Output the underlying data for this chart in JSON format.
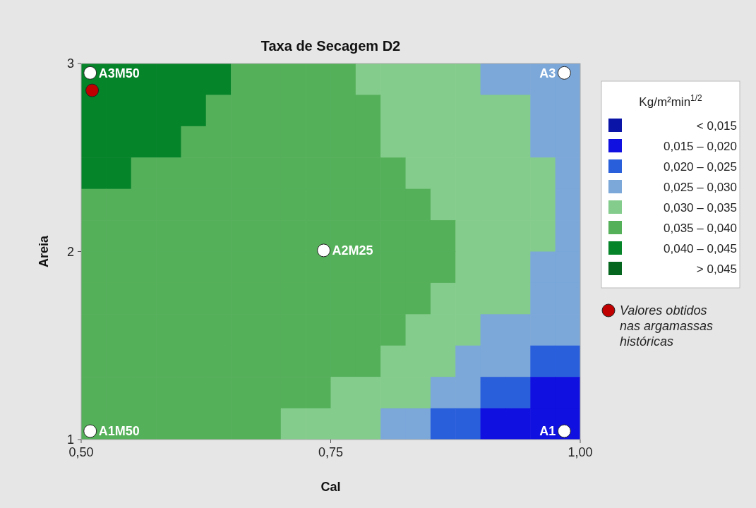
{
  "chart_data": [
    {
      "type": "heatmap",
      "clabel": "Kg/m²min$^{1/2}$",
      "categories": [
        null,
        null,
        null,
        null,
        null,
        null,
        null,
        null,
        null,
        null,
        null,
        null,
        null,
        null,
        null,
        null,
        null,
        null,
        null,
        null
      ],
      "y_categories": [
        null,
        null,
        null,
        null,
        null,
        null,
        null,
        null,
        null,
        null,
        null,
        null
      ],
      "clim": [
        0.01,
        0.05
      ],
      "colors": [
        "#0a14a6",
        "#1010e0",
        "#2a5fdc",
        "#7ba7d9",
        "#84cc8c",
        "#55b05a",
        "#06842a",
        "#04661e"
      ],
      "cticks": [
        {
          "value": 0.0125,
          "label": "< 0,015"
        },
        {
          "value": 0.0175,
          "label": "0,015 – 0,020"
        },
        {
          "value": 0.0225,
          "label": "0,020 – 0,025"
        },
        {
          "value": 0.0275,
          "label": "0,025 – 0,030"
        },
        {
          "value": 0.0325,
          "label": "0,030 – 0,035"
        },
        {
          "value": 0.0375,
          "label": "0,035 – 0,040"
        },
        {
          "value": 0.0425,
          "label": "0,040 – 0,045"
        },
        {
          "value": 0.0475,
          "label": "> 0,045"
        }
      ],
      "cells": [
        [
          0.0425,
          0.0425,
          0.0425,
          0.0425,
          0.0425,
          0.0425,
          0.0375,
          0.0375,
          0.0375,
          0.0375,
          0.0375,
          0.0325,
          0.0325,
          0.0325,
          0.0325,
          0.0325,
          0.0275,
          0.0275,
          0.0275,
          0.0275
        ],
        [
          0.0425,
          0.0425,
          0.0425,
          0.0425,
          0.0425,
          0.0375,
          0.0375,
          0.0375,
          0.0375,
          0.0375,
          0.0375,
          0.0375,
          0.0325,
          0.0325,
          0.0325,
          0.0325,
          0.0325,
          0.0325,
          0.0275,
          0.0275
        ],
        [
          0.0425,
          0.0425,
          0.0425,
          0.0425,
          0.0375,
          0.0375,
          0.0375,
          0.0375,
          0.0375,
          0.0375,
          0.0375,
          0.0375,
          0.0325,
          0.0325,
          0.0325,
          0.0325,
          0.0325,
          0.0325,
          0.0275,
          0.0275
        ],
        [
          0.0425,
          0.0425,
          0.0375,
          0.0375,
          0.0375,
          0.0375,
          0.0375,
          0.0375,
          0.0375,
          0.0375,
          0.0375,
          0.0375,
          0.0375,
          0.0325,
          0.0325,
          0.0325,
          0.0325,
          0.0325,
          0.0325,
          0.0275
        ],
        [
          0.0375,
          0.0375,
          0.0375,
          0.0375,
          0.0375,
          0.0375,
          0.0375,
          0.0375,
          0.0375,
          0.0375,
          0.0375,
          0.0375,
          0.0375,
          0.0375,
          0.0325,
          0.0325,
          0.0325,
          0.0325,
          0.0325,
          0.0275
        ],
        [
          0.0375,
          0.0375,
          0.0375,
          0.0375,
          0.0375,
          0.0375,
          0.0375,
          0.0375,
          0.0375,
          0.0375,
          0.0375,
          0.0375,
          0.0375,
          0.0375,
          0.0375,
          0.0325,
          0.0325,
          0.0325,
          0.0325,
          0.0275
        ],
        [
          0.0375,
          0.0375,
          0.0375,
          0.0375,
          0.0375,
          0.0375,
          0.0375,
          0.0375,
          0.0375,
          0.0375,
          0.0375,
          0.0375,
          0.0375,
          0.0375,
          0.0375,
          0.0325,
          0.0325,
          0.0325,
          0.0275,
          0.0275
        ],
        [
          0.0375,
          0.0375,
          0.0375,
          0.0375,
          0.0375,
          0.0375,
          0.0375,
          0.0375,
          0.0375,
          0.0375,
          0.0375,
          0.0375,
          0.0375,
          0.0375,
          0.0325,
          0.0325,
          0.0325,
          0.0325,
          0.0275,
          0.0275
        ],
        [
          0.0375,
          0.0375,
          0.0375,
          0.0375,
          0.0375,
          0.0375,
          0.0375,
          0.0375,
          0.0375,
          0.0375,
          0.0375,
          0.0375,
          0.0375,
          0.0325,
          0.0325,
          0.0325,
          0.0275,
          0.0275,
          0.0275,
          0.0275
        ],
        [
          0.0375,
          0.0375,
          0.0375,
          0.0375,
          0.0375,
          0.0375,
          0.0375,
          0.0375,
          0.0375,
          0.0375,
          0.0375,
          0.0375,
          0.0325,
          0.0325,
          0.0325,
          0.0275,
          0.0275,
          0.0275,
          0.0225,
          0.0225
        ],
        [
          0.0375,
          0.0375,
          0.0375,
          0.0375,
          0.0375,
          0.0375,
          0.0375,
          0.0375,
          0.0375,
          0.0375,
          0.0325,
          0.0325,
          0.0325,
          0.0325,
          0.0275,
          0.0275,
          0.0225,
          0.0225,
          0.0175,
          0.0175
        ],
        [
          0.0375,
          0.0375,
          0.0375,
          0.0375,
          0.0375,
          0.0375,
          0.0375,
          0.0375,
          0.0325,
          0.0325,
          0.0325,
          0.0325,
          0.0275,
          0.0275,
          0.0225,
          0.0225,
          0.0175,
          0.0175,
          0.0175,
          0.0175
        ]
      ]
    },
    {
      "type": "scatter",
      "title": "Taxa de Secagem D2",
      "xlabel": "Cal",
      "ylabel": "Areia",
      "xlim": [
        0.5,
        1.0
      ],
      "xticks": [
        {
          "value": 0.5,
          "label": "0,50"
        },
        {
          "value": 0.75,
          "label": "0,75"
        },
        {
          "value": 1.0,
          "label": "1,00"
        }
      ],
      "ylim": [
        1,
        3
      ],
      "yticks": [
        1,
        2,
        3
      ],
      "marker": "circle",
      "legend": "right",
      "series": [
        {
          "type": "scatter",
          "color": "#ffffff",
          "x": [
            0.509,
            0.984,
            0.743,
            0.509,
            0.984
          ],
          "values": [
            2.95,
            2.95,
            2.006,
            1.045,
            1.045
          ]
        },
        {
          "type": "scatter",
          "name": "Valores obtidos nas argamassas históricas",
          "color": "#c00000",
          "x": [
            0.511
          ],
          "values": [
            2.857
          ]
        }
      ],
      "annotations": [
        {
          "text": "A3M50",
          "x": 0.509,
          "y": 2.95
        },
        {
          "text": "A3",
          "x": 0.984,
          "y": 2.95
        },
        {
          "text": "A2M25",
          "x": 0.743,
          "y": 2.006
        },
        {
          "text": "A1M50",
          "x": 0.509,
          "y": 1.045
        },
        {
          "text": "A1",
          "x": 0.984,
          "y": 1.045
        }
      ]
    }
  ]
}
